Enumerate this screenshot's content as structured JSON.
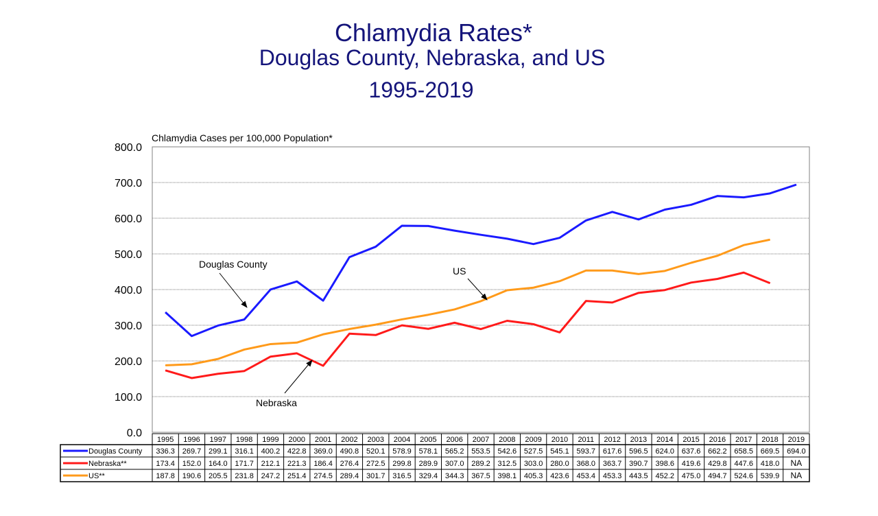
{
  "chart_data": {
    "type": "line",
    "title": "Chlamydia Rates*",
    "subtitle": "Douglas County, Nebraska, and US",
    "period": "1995-2019",
    "ylabel": "Chlamydia Cases per 100,000 Population*",
    "ylim": [
      0,
      800
    ],
    "yticks": [
      "0.0",
      "100.0",
      "200.0",
      "300.0",
      "400.0",
      "500.0",
      "600.0",
      "700.0",
      "800.0"
    ],
    "grid": true,
    "legend": "data table below chart",
    "categories": [
      "1995",
      "1996",
      "1997",
      "1998",
      "1999",
      "2000",
      "2001",
      "2002",
      "2003",
      "2004",
      "2005",
      "2006",
      "2007",
      "2008",
      "2009",
      "2010",
      "2011",
      "2012",
      "2013",
      "2014",
      "2015",
      "2016",
      "2017",
      "2018",
      "2019"
    ],
    "series": [
      {
        "name": "Douglas County",
        "annotation": "Douglas County",
        "color": "#1a1aff",
        "values": [
          336.3,
          269.7,
          299.1,
          316.1,
          400.2,
          422.8,
          369.0,
          490.8,
          520.1,
          578.9,
          578.1,
          565.2,
          553.5,
          542.6,
          527.5,
          545.1,
          593.7,
          617.6,
          596.5,
          624.0,
          637.6,
          662.2,
          658.5,
          669.5,
          694.0
        ]
      },
      {
        "name": "Nebraska**",
        "annotation": "Nebraska",
        "color": "#ff1a1a",
        "values": [
          173.4,
          152.0,
          164.0,
          171.7,
          212.1,
          221.3,
          186.4,
          276.4,
          272.5,
          299.8,
          289.9,
          307.0,
          289.2,
          312.5,
          303.0,
          280.0,
          368.0,
          363.7,
          390.7,
          398.6,
          419.6,
          429.8,
          447.6,
          418.0,
          "NA"
        ]
      },
      {
        "name": "US**",
        "annotation": "US",
        "color": "#ff9a1a",
        "values": [
          187.8,
          190.6,
          205.5,
          231.8,
          247.2,
          251.4,
          274.5,
          289.4,
          301.7,
          316.5,
          329.4,
          344.3,
          367.5,
          398.1,
          405.3,
          423.6,
          453.4,
          453.3,
          443.5,
          452.2,
          475.0,
          494.7,
          524.6,
          539.9,
          "NA"
        ]
      }
    ]
  }
}
